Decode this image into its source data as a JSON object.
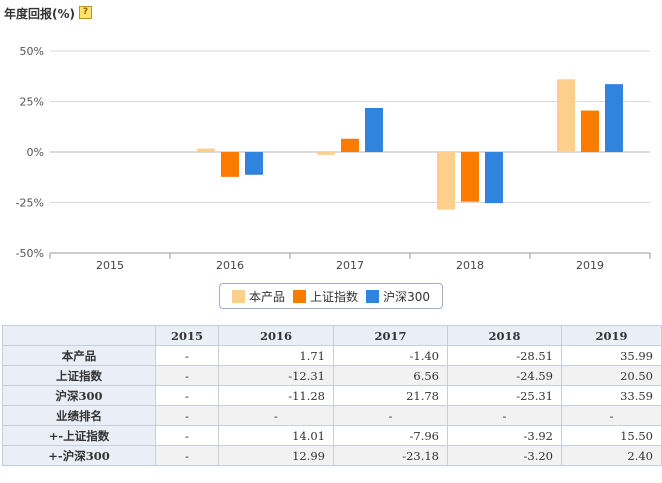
{
  "page": {
    "title": "年度回报(%)",
    "help_icon": "?"
  },
  "chart_data": {
    "type": "bar",
    "categories": [
      "2015",
      "2016",
      "2017",
      "2018",
      "2019"
    ],
    "y_ticks": [
      "50%",
      "25%",
      "0%",
      "-25%",
      "-50%"
    ],
    "y_tick_values": [
      50,
      25,
      0,
      -25,
      -50
    ],
    "ylim": [
      -50,
      50
    ],
    "grid": true,
    "legend_position": "bottom-center",
    "series": [
      {
        "name": "本产品",
        "color": "#fcd08a",
        "values": [
          null,
          1.71,
          -1.4,
          -28.51,
          35.99
        ]
      },
      {
        "name": "上证指数",
        "color": "#fd7a02",
        "values": [
          null,
          -12.31,
          6.56,
          -24.59,
          20.5
        ]
      },
      {
        "name": "沪深300",
        "color": "#2f84e0",
        "values": [
          null,
          -11.28,
          21.78,
          -25.31,
          33.59
        ]
      }
    ]
  },
  "table": {
    "headers": [
      "",
      "2015",
      "2016",
      "2017",
      "2018",
      "2019"
    ],
    "rows": [
      {
        "label": "本产品",
        "cells": [
          "-",
          "1.71",
          "-1.40",
          "-28.51",
          "35.99"
        ]
      },
      {
        "label": "上证指数",
        "cells": [
          "-",
          "-12.31",
          "6.56",
          "-24.59",
          "20.50"
        ]
      },
      {
        "label": "沪深300",
        "cells": [
          "-",
          "-11.28",
          "21.78",
          "-25.31",
          "33.59"
        ]
      },
      {
        "label": "业绩排名",
        "cells": [
          "-",
          "-",
          "-",
          "-",
          "-"
        ]
      },
      {
        "label": "+-上证指数",
        "cells": [
          "-",
          "14.01",
          "-7.96",
          "-3.92",
          "15.50"
        ]
      },
      {
        "label": "+-沪深300",
        "cells": [
          "-",
          "12.99",
          "-23.18",
          "-3.20",
          "2.40"
        ]
      }
    ]
  }
}
